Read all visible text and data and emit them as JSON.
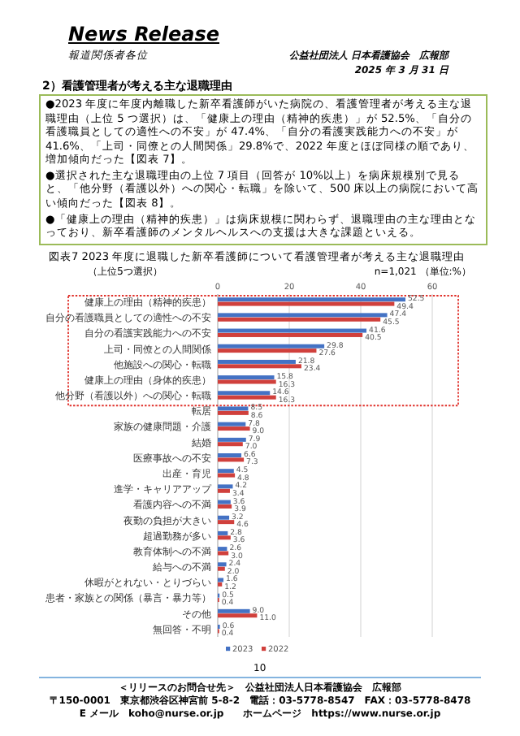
{
  "chart_data": {
    "type": "bar",
    "orientation": "horizontal",
    "title": "図表7 2023 年度に退職した新卒看護師について看護管理者が考える主な退職理由",
    "subtitle": "（上位5つ選択）",
    "categories": [
      "健康上の理由（精神的疾患）",
      "自分の看護職員としての適性への不安",
      "自分の看護実践能力への不安",
      "上司・同僚との人間関係",
      "他施設への関心・転職",
      "健康上の理由（身体的疾患）",
      "他分野（看護以外）への関心・転職",
      "転居",
      "家族の健康問題・介護",
      "結婚",
      "医療事故への不安",
      "出産・育児",
      "進学・キャリアアップ",
      "看護内容への不満",
      "夜勤の負担が大きい",
      "超過勤務が多い",
      "教育体制への不満",
      "給与への不満",
      "休暇がとれない・とりづらい",
      "患者・家族との関係（暴言・暴力等）",
      "その他",
      "無回答・不明"
    ],
    "series": [
      {
        "name": "2023",
        "color": "#4472c4",
        "values": [
          52.5,
          47.4,
          41.6,
          29.8,
          21.8,
          15.8,
          14.6,
          8.5,
          7.8,
          7.9,
          6.6,
          4.5,
          4.2,
          3.6,
          3.2,
          2.8,
          2.6,
          2.4,
          1.6,
          0.5,
          9.0,
          0.6
        ],
        "value_labels": [
          "52.5",
          "47.4",
          "41.6",
          "29.8",
          "21.8",
          "15.8",
          "14.6",
          "8.5",
          "7.8",
          "7.9",
          "6.6",
          "4.5",
          "4.2",
          "3.6",
          "3.2",
          "2.8",
          "2.6",
          "2.4",
          "1.6",
          "0.5",
          "9.0",
          "0.6"
        ]
      },
      {
        "name": "2022",
        "color": "#d0403c",
        "values": [
          49.4,
          45.5,
          40.5,
          27.6,
          23.4,
          16.3,
          16.3,
          8.6,
          9.0,
          7.0,
          7.3,
          4.8,
          3.4,
          3.9,
          4.6,
          3.6,
          3.0,
          2.0,
          1.2,
          0.4,
          11.0,
          0.4
        ],
        "value_labels": [
          "49.4",
          "45.5",
          "40.5",
          "27.6",
          "23.4",
          "16.3",
          "16.3",
          "8.6",
          "9.0",
          "7.0",
          "7.3",
          "4.8",
          "3.4",
          "3.9",
          "4.6",
          "3.6",
          "3.0",
          "2.0",
          "1.2",
          "0.4",
          "11.0",
          "0.4"
        ]
      }
    ],
    "xlim": [
      0,
      67
    ],
    "xticks": [
      0,
      20,
      40,
      60
    ],
    "grid": "x",
    "legend": "bottom",
    "annotations": [
      "News Release",
      "報道関係者各位",
      "公益社団法人 日本看護協会　広報部",
      "2025 年 3 月 31 日",
      "2）看護管理者が考える主な退職理由",
      "●2023 年度に年度内離職した新卒看護師がいた病院の、看護管理者が考える主な退職理由（上位 5 つ選択）は、「健康上の理由（精神的疾患）」が 52.5%、「自分の看護職員としての適性への不安」が 47.4%、「自分の看護実践能力への不安」が 41.6%、「上司・同僚との人間関係」29.8%で、2022 年度とほぼ同様の順であり、増加傾向だった【図表 7】。",
      "●選択された主な退職理由の上位 7 項目（回答が 10%以上）を病床規模別で見ると、「他分野（看護以外）への関心・転職」を除いて、500 床以上の病院において高い傾向だった【図表 8】。",
      "●「健康上の理由（精神的疾患）」は病床規模に関わらず、退職理由の主な理由となっており、新卒看護師のメンタルヘルスへの支援は大きな課題といえる。",
      "n=1,021 （単位:%）",
      "10",
      "＜リリースのお問合せ先＞　公益社団法人日本看護協会　広報部",
      "〒150-0001　東京都渋谷区神宮前 5-8-2　電話：03-5778-8547　FAX：03-5778-8478",
      "E メール　koho@nurse.or.jp　　ホームページ　https://www.nurse.or.jp"
    ]
  }
}
